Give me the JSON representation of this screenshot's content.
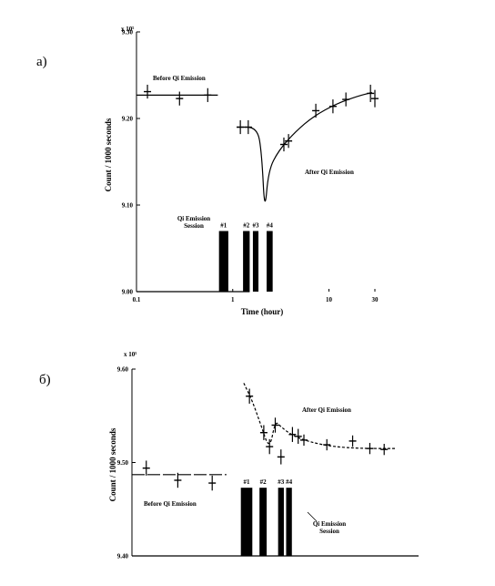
{
  "chart_data": [
    {
      "type": "scatter",
      "panel_label": "a)",
      "title": "",
      "xlabel": "Time (hour)",
      "ylabel": "Count / 1000 seconds",
      "y_multiplier": "x 10⁵",
      "xscale": "log",
      "xlim": [
        0.1,
        30
      ],
      "ylim": [
        9.0,
        9.3
      ],
      "xticks": [
        {
          "value": 0.1,
          "label": "0.1"
        },
        {
          "value": 1,
          "label": "1"
        },
        {
          "value": 10,
          "label": "10"
        },
        {
          "value": 30,
          "label": "30"
        }
      ],
      "yticks": [
        {
          "value": 9.0,
          "label": "9.00"
        },
        {
          "value": 9.1,
          "label": "9.10"
        },
        {
          "value": 9.2,
          "label": "9.20"
        },
        {
          "value": 9.3,
          "label": "9.30"
        }
      ],
      "annotations": {
        "before": "Before Qi Emission",
        "after": "After Qi Emission",
        "session": [
          "Qi Emission",
          "Session"
        ]
      },
      "before_points": [
        {
          "x": 0.13,
          "y": 9.231,
          "err": 0.008
        },
        {
          "x": 0.28,
          "y": 9.223,
          "err": 0.008
        },
        {
          "x": 0.55,
          "y": 9.227,
          "err": 0.008
        }
      ],
      "before_line": [
        [
          0.1,
          9.227
        ],
        [
          0.7,
          9.227
        ]
      ],
      "after_points": [
        {
          "x": 1.2,
          "y": 9.19,
          "err": 0.008
        },
        {
          "x": 1.45,
          "y": 9.19,
          "err": 0.008
        },
        {
          "x": 3.4,
          "y": 9.17,
          "err": 0.008
        },
        {
          "x": 3.8,
          "y": 9.174,
          "err": 0.008
        },
        {
          "x": 7.3,
          "y": 9.209,
          "err": 0.008
        },
        {
          "x": 11.0,
          "y": 9.214,
          "err": 0.008
        },
        {
          "x": 15.0,
          "y": 9.222,
          "err": 0.008
        },
        {
          "x": 27.0,
          "y": 9.229,
          "err": 0.01
        },
        {
          "x": 30.0,
          "y": 9.223,
          "err": 0.01
        }
      ],
      "after_curve": [
        [
          1.1,
          9.19
        ],
        [
          1.8,
          9.19
        ],
        [
          2.0,
          9.16
        ],
        [
          2.15,
          9.09
        ],
        [
          2.35,
          9.14
        ],
        [
          3.0,
          9.163
        ],
        [
          4.5,
          9.185
        ],
        [
          7.0,
          9.203
        ],
        [
          12.0,
          9.217
        ],
        [
          20.0,
          9.226
        ],
        [
          28.0,
          9.23
        ]
      ],
      "session_line": [
        [
          0.1,
          9.0
        ],
        [
          1.5,
          9.0
        ]
      ],
      "sessions": [
        {
          "label": "#1",
          "x_start": 0.72,
          "x_end": 0.9,
          "y_top": 9.07
        },
        {
          "label": "#2",
          "x_start": 1.28,
          "x_end": 1.5,
          "y_top": 9.07
        },
        {
          "label": "#3",
          "x_start": 1.62,
          "x_end": 1.85,
          "y_top": 9.07
        },
        {
          "label": "#4",
          "x_start": 2.25,
          "x_end": 2.6,
          "y_top": 9.07
        }
      ]
    },
    {
      "type": "scatter",
      "panel_label": "б)",
      "title": "",
      "xlabel": "",
      "ylabel": "Count / 1000 seconds",
      "y_multiplier": "x 10⁵",
      "xlim": [
        0,
        100
      ],
      "ylim": [
        9.4,
        9.6
      ],
      "yticks": [
        {
          "value": 9.4,
          "label": "9.40"
        },
        {
          "value": 9.5,
          "label": "9.50"
        },
        {
          "value": 9.6,
          "label": "9.60"
        }
      ],
      "annotations": {
        "before": "Before Qi Emission",
        "after": "After Qi Emission",
        "session": [
          "Qi Emission",
          "Session"
        ]
      },
      "before_points": [
        {
          "x": 5,
          "y": 9.494,
          "err": 0.008
        },
        {
          "x": 16,
          "y": 9.481,
          "err": 0.008
        },
        {
          "x": 28,
          "y": 9.478,
          "err": 0.008
        }
      ],
      "before_line": [
        [
          0,
          9.487
        ],
        [
          33,
          9.487
        ]
      ],
      "after_points": [
        {
          "x": 41,
          "y": 9.571,
          "err": 0.008
        },
        {
          "x": 46,
          "y": 9.532,
          "err": 0.008
        },
        {
          "x": 48,
          "y": 9.517,
          "err": 0.008
        },
        {
          "x": 50,
          "y": 9.54,
          "err": 0.008
        },
        {
          "x": 52,
          "y": 9.506,
          "err": 0.008
        },
        {
          "x": 56,
          "y": 9.53,
          "err": 0.008
        },
        {
          "x": 58,
          "y": 9.528,
          "err": 0.008
        },
        {
          "x": 60,
          "y": 9.524,
          "err": 0.006
        },
        {
          "x": 68,
          "y": 9.519,
          "err": 0.006
        },
        {
          "x": 77,
          "y": 9.523,
          "err": 0.006
        },
        {
          "x": 83,
          "y": 9.515,
          "err": 0.006
        },
        {
          "x": 88,
          "y": 9.514,
          "err": 0.006
        }
      ],
      "after_curve": [
        [
          39,
          9.585
        ],
        [
          42,
          9.566
        ],
        [
          45,
          9.54
        ],
        [
          48,
          9.513
        ],
        [
          50,
          9.545
        ],
        [
          52,
          9.538
        ],
        [
          56,
          9.529
        ],
        [
          62,
          9.522
        ],
        [
          70,
          9.517
        ],
        [
          80,
          9.515
        ],
        [
          92,
          9.515
        ]
      ],
      "bottom_line": [
        [
          0,
          9.4
        ],
        [
          100,
          9.4
        ]
      ],
      "sessions": [
        {
          "label": "#1",
          "x_start": 38.0,
          "x_end": 42.0,
          "y_top": 9.473
        },
        {
          "label": "#2",
          "x_start": 44.5,
          "x_end": 47.0,
          "y_top": 9.473
        },
        {
          "label": "#3",
          "x_start": 51.0,
          "x_end": 53.0,
          "y_top": 9.473
        },
        {
          "label": "#4",
          "x_start": 53.8,
          "x_end": 55.8,
          "y_top": 9.473
        }
      ]
    }
  ]
}
